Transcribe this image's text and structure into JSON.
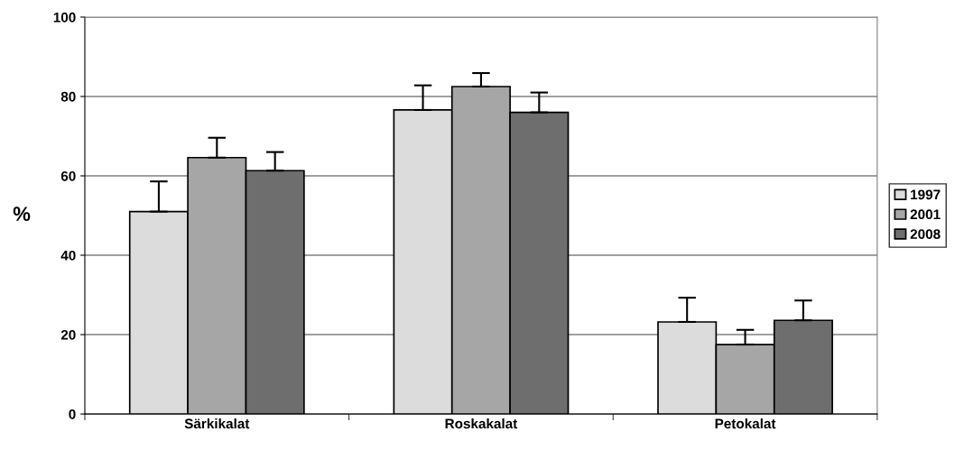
{
  "chart_data": {
    "type": "bar",
    "ylabel": "%",
    "categories": [
      "Särkikalat",
      "Roskakalat",
      "Petokalat"
    ],
    "series": [
      {
        "name": "1997",
        "color": "#dcdcdc",
        "values": [
          51.0,
          76.6,
          23.2
        ],
        "errors": [
          [
            51.0,
            58.6
          ],
          [
            76.6,
            82.8
          ],
          [
            23.2,
            29.3
          ]
        ]
      },
      {
        "name": "2001",
        "color": "#a6a6a6",
        "values": [
          64.6,
          82.5,
          17.5
        ],
        "errors": [
          [
            64.6,
            69.6
          ],
          [
            82.5,
            85.9
          ],
          [
            17.5,
            21.2
          ]
        ]
      },
      {
        "name": "2008",
        "color": "#6e6e6e",
        "values": [
          61.3,
          76.0,
          23.6
        ],
        "errors": [
          [
            61.3,
            66.0
          ],
          [
            76.0,
            81.0
          ],
          [
            23.6,
            28.6
          ]
        ]
      }
    ],
    "ylim": [
      0,
      100
    ],
    "yticks": [
      0,
      20,
      40,
      60,
      80,
      100
    ],
    "grid": "y",
    "legend": "right"
  }
}
